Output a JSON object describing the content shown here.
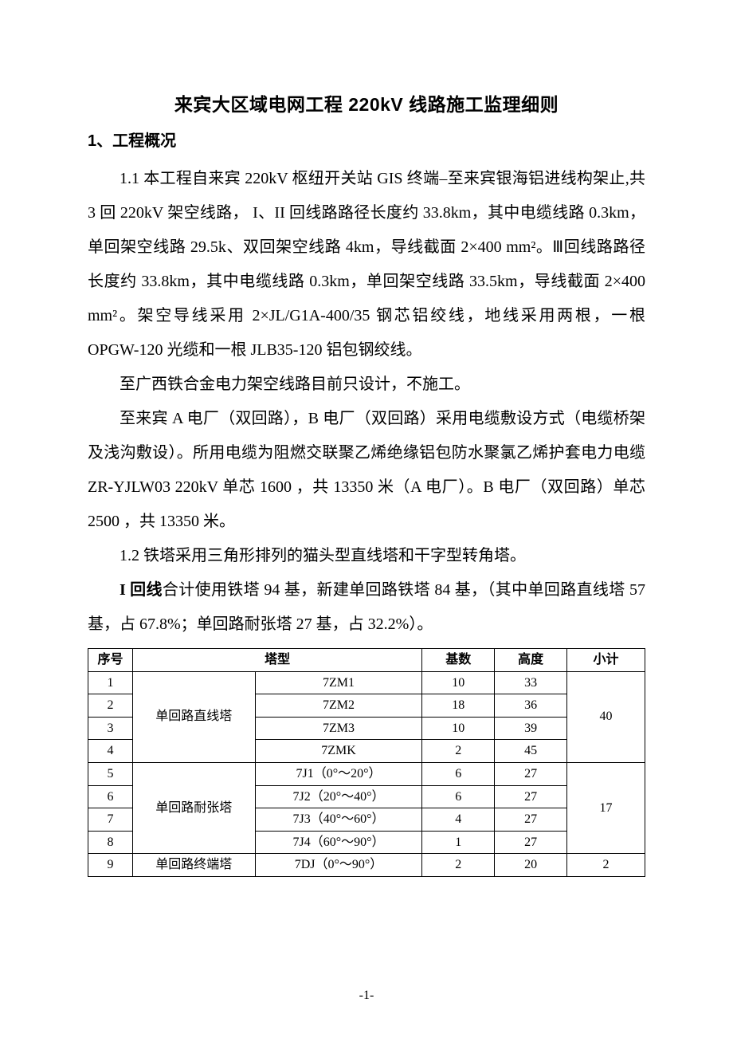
{
  "title": "来宾大区域电网工程 220kV 线路施工监理细则",
  "section1": {
    "heading": "1、工程概况",
    "p1_a": "1.1 本工程自来宾 220kV 枢纽开关站 GIS 终端–至来宾银海铝进线构架止,共 3 回 220kV 架空线路，  I、II 回线路路径长度约 33.8km，其中电缆线路 0.3km，单回架空线路 29.5k、双回架空线路 4km，导线截面 2×400 mm²。Ⅲ回线路路径长度约 33.8km，其中电缆线路 0.3km，单回架空线路 33.5km，导线截面 2×400 mm²。架空导线采用 2×JL/G1A-400/35 钢芯铝绞线，地线采用两根，一根 OPGW-120 光缆和一根 JLB35-120 铝包钢绞线。",
    "p2": "至广西铁合金电力架空线路目前只设计，不施工。",
    "p3": "至来宾 A 电厂（双回路），B 电厂（双回路）采用电缆敷设方式（电缆桥架及浅沟敷设）。所用电缆为阻燃交联聚乙烯绝缘铝包防水聚氯乙烯护套电力电缆 ZR-YJLW03 220kV 单芯 1600 ，共 13350 米（A 电厂）。B 电厂（双回路）单芯 2500 ，共 13350 米。",
    "p4": "1.2 铁塔采用三角形排列的猫头型直线塔和干字型转角塔。",
    "p5_bold": "I 回线",
    "p5_rest": "合计使用铁塔 94 基，新建单回路铁塔 84 基，（其中单回路直线塔 57 基，占 67.8%；单回路耐张塔 27 基，占 32.2%）。"
  },
  "table": {
    "type": "table",
    "columns": [
      "序号",
      "塔型",
      "基数",
      "高度",
      "小计"
    ],
    "col_widths_pct": [
      8,
      22,
      30,
      13,
      13,
      14
    ],
    "font_size": 16,
    "border_color": "#000000",
    "rows": [
      {
        "idx": "1",
        "group": "单回路直线塔",
        "model": "7ZM1",
        "count": "10",
        "height": "33",
        "subtotal": "40",
        "group_rowspan": 4,
        "subtotal_rowspan": 4
      },
      {
        "idx": "2",
        "model": "7ZM2",
        "count": "18",
        "height": "36"
      },
      {
        "idx": "3",
        "model": "7ZM3",
        "count": "10",
        "height": "39"
      },
      {
        "idx": "4",
        "model": "7ZMK",
        "count": "2",
        "height": "45"
      },
      {
        "idx": "5",
        "group": "单回路耐张塔",
        "model": "7J1（0°～20°）",
        "count": "6",
        "height": "27",
        "subtotal": "17",
        "group_rowspan": 4,
        "subtotal_rowspan": 4
      },
      {
        "idx": "6",
        "model": "7J2（20°～40°）",
        "count": "6",
        "height": "27"
      },
      {
        "idx": "7",
        "model": "7J3（40°～60°）",
        "count": "4",
        "height": "27"
      },
      {
        "idx": "8",
        "model": "7J4（60°～90°）",
        "count": "1",
        "height": "27"
      },
      {
        "idx": "9",
        "group": "单回路终端塔",
        "model": "7DJ（0°～90°）",
        "count": "2",
        "height": "20",
        "subtotal": "2",
        "group_rowspan": 1,
        "subtotal_rowspan": 1
      }
    ]
  },
  "page_number": "-1-"
}
